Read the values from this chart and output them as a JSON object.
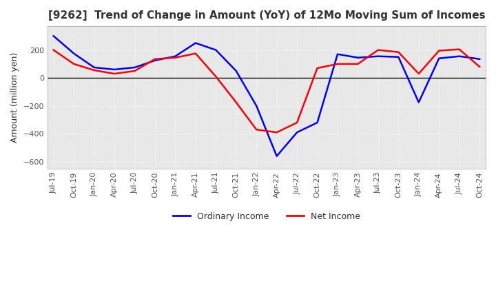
{
  "title": "[9262]  Trend of Change in Amount (YoY) of 12Mo Moving Sum of Incomes",
  "ylabel": "Amount (million yen)",
  "x_labels": [
    "Jul-19",
    "Oct-19",
    "Jan-20",
    "Apr-20",
    "Jul-20",
    "Oct-20",
    "Jan-21",
    "Apr-21",
    "Jul-21",
    "Oct-21",
    "Jan-22",
    "Apr-22",
    "Jul-22",
    "Oct-22",
    "Jan-23",
    "Apr-23",
    "Jul-23",
    "Oct-23",
    "Jan-24",
    "Apr-24",
    "Jul-24",
    "Oct-24"
  ],
  "ordinary_income": [
    300,
    175,
    75,
    60,
    75,
    125,
    155,
    250,
    200,
    50,
    -200,
    -560,
    -390,
    -320,
    170,
    145,
    155,
    150,
    -175,
    140,
    155,
    135
  ],
  "net_income": [
    200,
    100,
    55,
    30,
    50,
    135,
    145,
    175,
    10,
    -175,
    -370,
    -390,
    -320,
    70,
    100,
    100,
    200,
    185,
    30,
    195,
    205,
    80
  ],
  "ordinary_color": "#0000ff",
  "net_color": "#ff0000",
  "ylim": [
    -650,
    370
  ],
  "yticks": [
    -600,
    -400,
    -200,
    0,
    200
  ],
  "background_color": "#ffffff",
  "plot_bg_color": "#e8e8e8",
  "grid_color": "#ffffff",
  "zero_line_color": "#000000",
  "title_color": "#333333",
  "label_color": "#333333",
  "tick_label_color": "#555555",
  "legend_ordinary": "Ordinary Income",
  "legend_net": "Net Income"
}
